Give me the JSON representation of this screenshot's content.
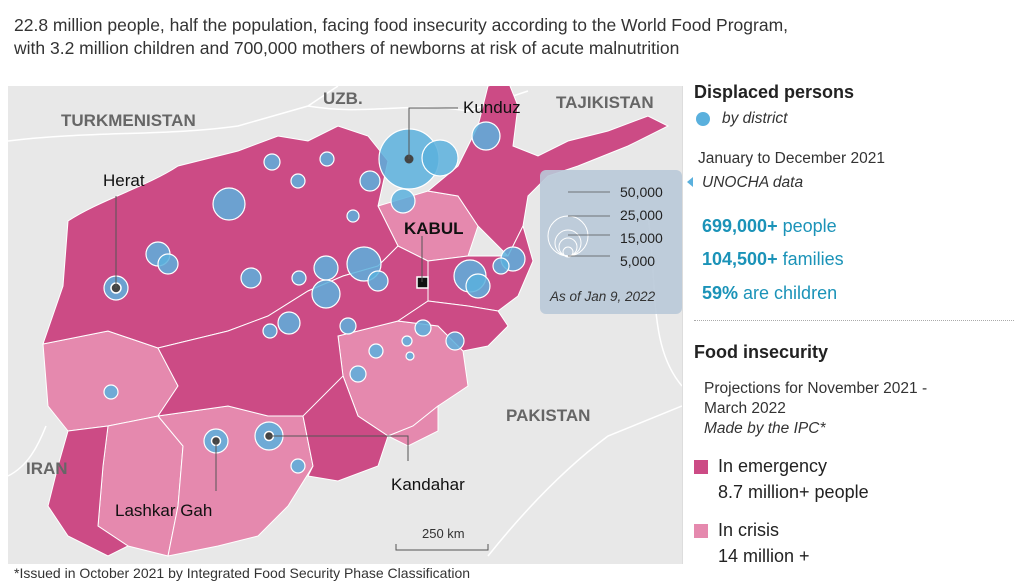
{
  "subtitle": {
    "line1": "22.8 million people, half the population, facing food insecurity according to the World Food Program,",
    "line2": "with 3.2 million children and 700,000 mothers of newborns at risk of acute malnutrition"
  },
  "map": {
    "countries": {
      "turkmenistan": "TURKMENISTAN",
      "uzbekistan": "UZB.",
      "tajikistan": "TAJIKISTAN",
      "iran": "IRAN",
      "pakistan": "PAKISTAN"
    },
    "cities": {
      "kunduz": "Kunduz",
      "herat": "Herat",
      "kabul": "KABUL",
      "kandahar": "Kandahar",
      "lashkar_gah": "Lashkar Gah"
    },
    "scale": "250 km",
    "bubble_legend": {
      "values": [
        "50,000",
        "25,000",
        "15,000",
        "5,000"
      ],
      "date": "As of Jan 9, 2022"
    }
  },
  "displaced": {
    "title": "Displaced persons",
    "by": "by district",
    "period": "January to December 2021",
    "source": "UNOCHA data",
    "people_num": "699,000+",
    "people_label": " people",
    "families_num": "104,500+",
    "families_label": " families",
    "children_num": "59%",
    "children_label": " are children"
  },
  "food": {
    "title": "Food insecurity",
    "proj1": "Projections for November 2021 -",
    "proj2": "March 2022",
    "source": "Made by the IPC*",
    "emergency_label": "In emergency",
    "emergency_value": "8.7 million+ people",
    "crisis_label": "In crisis",
    "crisis_value": "14 million +"
  },
  "footnote": "*Issued in October 2021 by Integrated Food Security Phase Classification",
  "colors": {
    "emergency": "#cc4b85",
    "crisis": "#e589ae",
    "bubble": "#5ab0dd",
    "accent": "#1b93b8",
    "land": "#e8e8e8",
    "border": "#ffffff"
  }
}
